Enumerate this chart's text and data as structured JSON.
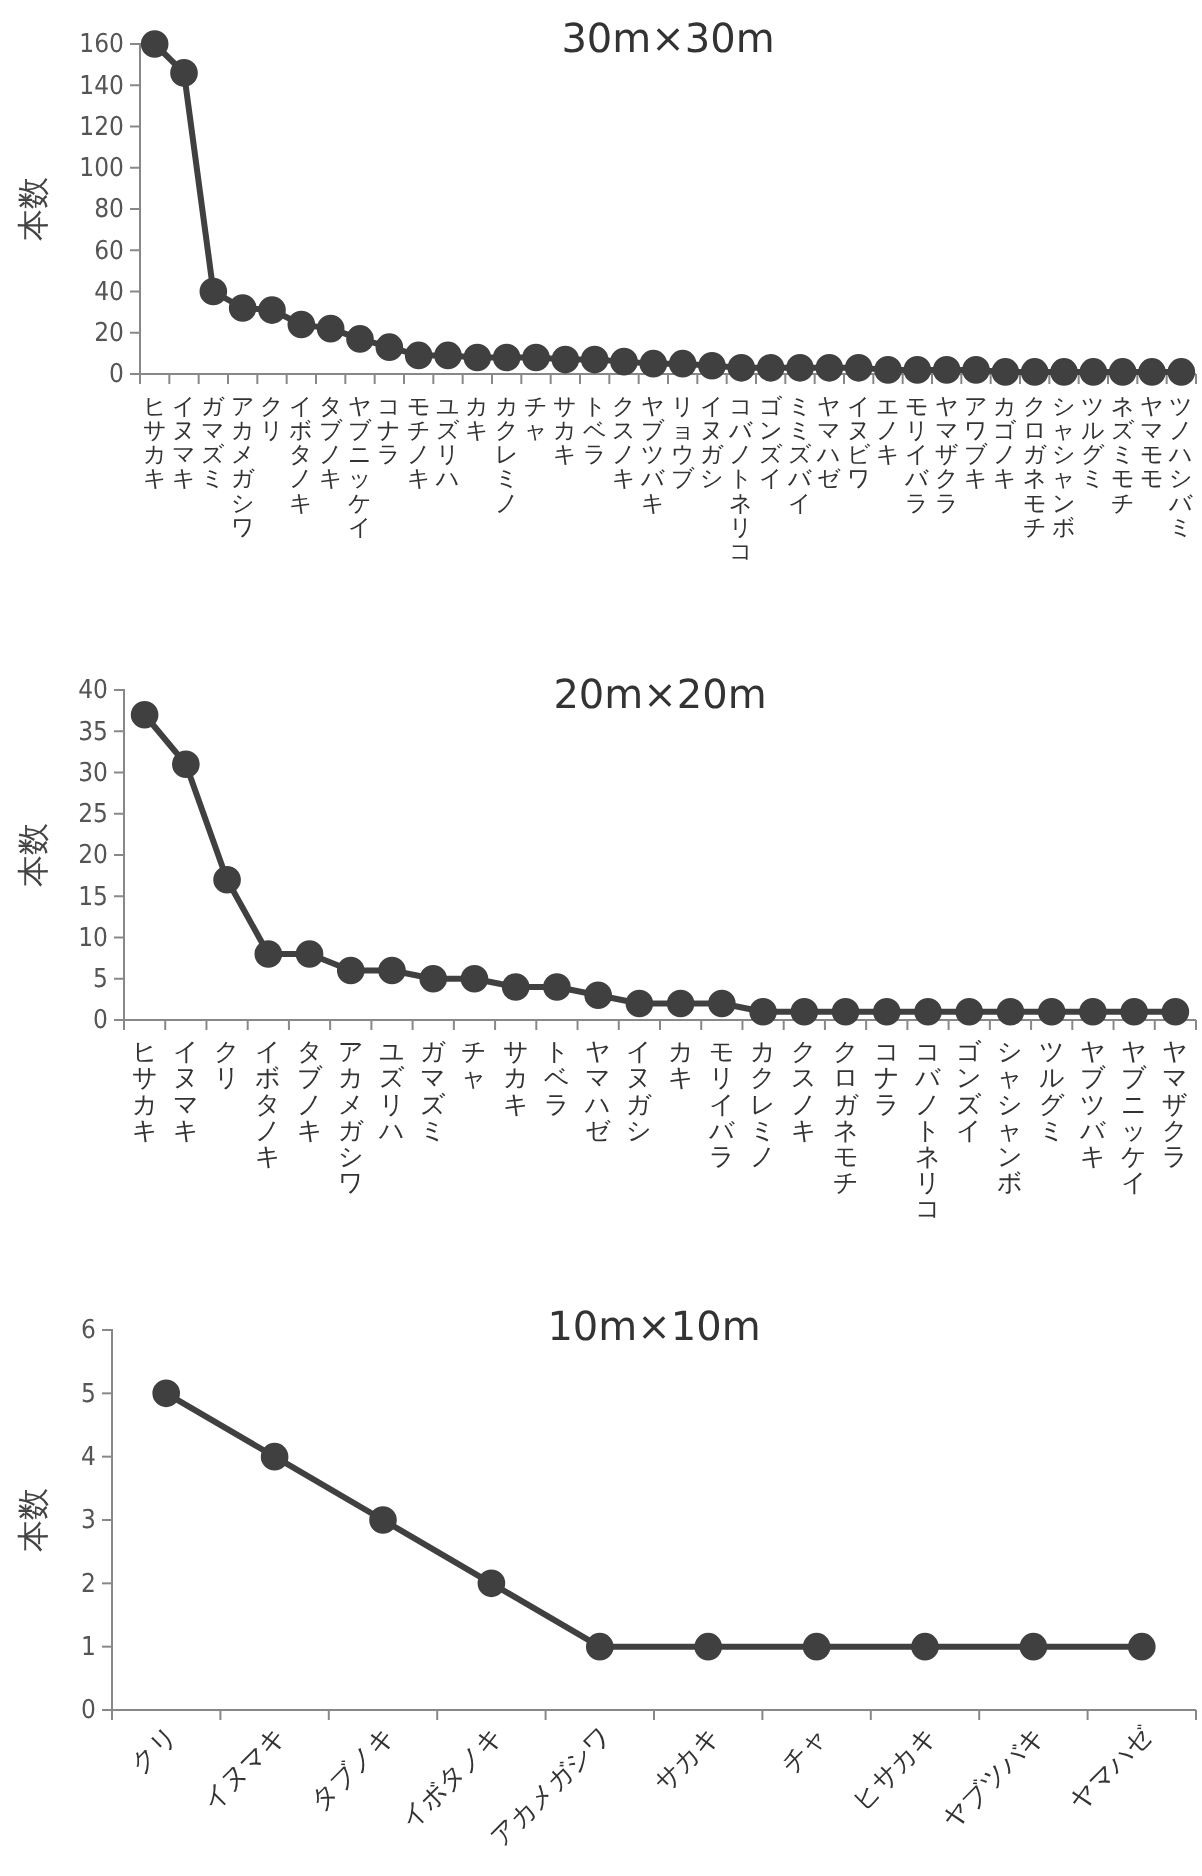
{
  "chart_data": [
    {
      "type": "line",
      "title": "30m×30m",
      "ylabel": "本数",
      "categories": [
        "ヒサカキ",
        "イヌマキ",
        "ガマズミ",
        "アカメガシワ",
        "クリ",
        "イボタノキ",
        "タブノキ",
        "ヤブニッケイ",
        "コナラ",
        "モチノキ",
        "ユズリハ",
        "カキ",
        "カクレミノ",
        "チャ",
        "サカキ",
        "トベラ",
        "クスノキ",
        "ヤブツバキ",
        "リョウブ",
        "イヌガシ",
        "コバノトネリコ",
        "ゴンズイ",
        "ミミズバイ",
        "ヤマハゼ",
        "イヌビワ",
        "エノキ",
        "モリイバラ",
        "ヤマザクラ",
        "アワブキ",
        "カゴノキ",
        "クロガネモチ",
        "シャシャンボ",
        "ツルグミ",
        "ネズミモチ",
        "ヤマモモ",
        "ツノハシバミ"
      ],
      "series": [
        {
          "color": "#404040",
          "values": [
            160,
            146,
            40,
            32,
            31,
            24,
            22,
            17,
            13,
            9,
            9,
            8,
            8,
            8,
            7,
            7,
            6,
            5,
            5,
            4,
            3,
            3,
            3,
            3,
            3,
            2,
            2,
            2,
            2,
            1,
            1,
            1,
            1,
            1,
            1,
            1
          ]
        }
      ],
      "ylim": [
        0,
        160
      ],
      "yticks": [
        0,
        20,
        40,
        60,
        80,
        100,
        120,
        140,
        160
      ],
      "grid": false,
      "marker": "circle",
      "line_style": "solid"
    },
    {
      "type": "line",
      "title": "20m×20m",
      "ylabel": "本数",
      "categories": [
        "ヒサカキ",
        "イヌマキ",
        "クリ",
        "イボタノキ",
        "タブノキ",
        "アカメガシワ",
        "ユズリハ",
        "ガマズミ",
        "チャ",
        "サカキ",
        "トベラ",
        "ヤマハゼ",
        "イヌガシ",
        "カキ",
        "モリイバラ",
        "カクレミノ",
        "クスノキ",
        "クロガネモチ",
        "コナラ",
        "コバノトネリコ",
        "ゴンズイ",
        "シャシャンボ",
        "ツルグミ",
        "ヤブツバキ",
        "ヤブニッケイ",
        "ヤマザクラ"
      ],
      "series": [
        {
          "color": "#404040",
          "values": [
            37,
            31,
            17,
            8,
            8,
            6,
            6,
            5,
            5,
            4,
            4,
            3,
            2,
            2,
            2,
            1,
            1,
            1,
            1,
            1,
            1,
            1,
            1,
            1,
            1,
            1
          ]
        }
      ],
      "ylim": [
        0,
        40
      ],
      "yticks": [
        0,
        5,
        10,
        15,
        20,
        25,
        30,
        35,
        40
      ],
      "grid": false,
      "marker": "circle",
      "line_style": "solid"
    },
    {
      "type": "line",
      "title": "10m×10m",
      "ylabel": "本数",
      "categories": [
        "クリ",
        "イヌマキ",
        "タブノキ",
        "イボタノキ",
        "アカメガシワ",
        "サカキ",
        "チャ",
        "ヒサカキ",
        "ヤブツバキ",
        "ヤマハゼ"
      ],
      "series": [
        {
          "color": "#404040",
          "values": [
            5,
            4,
            3,
            2,
            1,
            1,
            1,
            1,
            1,
            1
          ]
        }
      ],
      "ylim": [
        0,
        6
      ],
      "yticks": [
        0,
        1,
        2,
        3,
        4,
        5,
        6
      ],
      "grid": false,
      "marker": "circle",
      "line_style": "solid"
    }
  ]
}
